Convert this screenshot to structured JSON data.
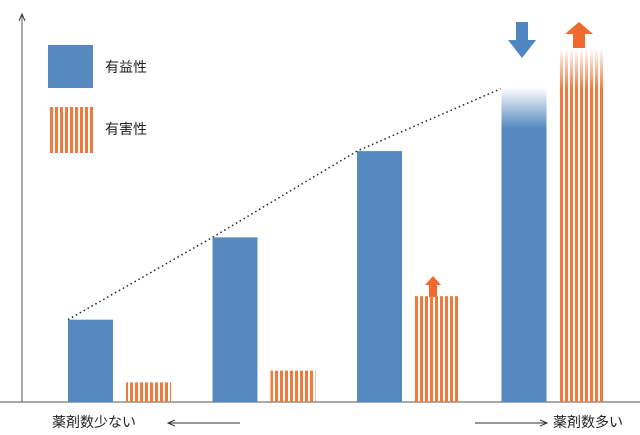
{
  "chart_data": {
    "type": "bar",
    "categories": [
      null,
      null,
      null,
      null
    ],
    "series": [
      {
        "name": "有益性",
        "color": "#5589c0",
        "values": [
          21,
          42,
          64,
          80
        ]
      },
      {
        "name": "有害性",
        "color": "#f07a3c",
        "values": [
          5,
          8,
          27,
          90
        ]
      }
    ],
    "ylim": [
      0,
      100
    ],
    "x_label_left": "薬剤数少ない",
    "x_label_right": "薬剤数多い"
  }
}
